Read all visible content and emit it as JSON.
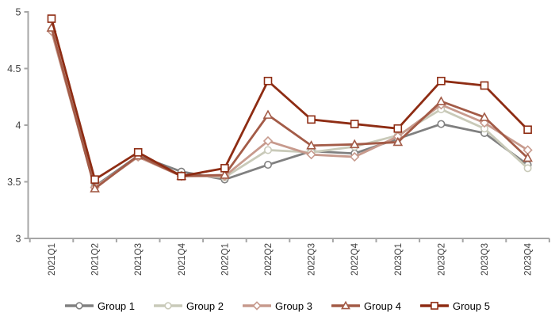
{
  "chart_data": {
    "type": "line",
    "title": "",
    "xlabel": "",
    "ylabel": "",
    "grid": false,
    "legend_position": "bottom",
    "axis_color": "#a6a6a6",
    "tick_label_color": "#404040",
    "marker_fill": "#ffffff",
    "ylim": [
      3,
      5
    ],
    "yticks": [
      {
        "value": 3,
        "label": "3"
      },
      {
        "value": 3.5,
        "label": "3.5"
      },
      {
        "value": 4,
        "label": "4"
      },
      {
        "value": 4.5,
        "label": "4.5"
      },
      {
        "value": 5,
        "label": "5"
      }
    ],
    "categories": [
      "2021Q1",
      "2021Q2",
      "2021Q3",
      "2021Q4",
      "2022Q1",
      "2022Q2",
      "2022Q3",
      "2022Q4",
      "2023Q1",
      "2023Q2",
      "2023Q3",
      "2023Q4"
    ],
    "series": [
      {
        "name": "Group 1",
        "color": "#808080",
        "marker": "circle",
        "values": [
          4.84,
          3.46,
          3.73,
          3.59,
          3.52,
          3.65,
          3.77,
          3.75,
          3.88,
          4.01,
          3.93,
          3.65
        ]
      },
      {
        "name": "Group 2",
        "color": "#c9cab9",
        "marker": "circle",
        "values": [
          4.84,
          3.45,
          3.72,
          3.56,
          3.54,
          3.78,
          3.76,
          3.81,
          3.91,
          4.14,
          3.97,
          3.62
        ]
      },
      {
        "name": "Group 3",
        "color": "#c79a8d",
        "marker": "diamond",
        "values": [
          4.83,
          3.45,
          3.72,
          3.55,
          3.55,
          3.86,
          3.74,
          3.72,
          3.9,
          4.18,
          4.02,
          3.78
        ]
      },
      {
        "name": "Group 4",
        "color": "#a35b47",
        "marker": "triangle",
        "values": [
          4.86,
          3.44,
          3.73,
          3.55,
          3.56,
          4.09,
          3.82,
          3.83,
          3.85,
          4.21,
          4.07,
          3.71
        ]
      },
      {
        "name": "Group 5",
        "color": "#8e2c13",
        "marker": "square",
        "values": [
          4.94,
          3.52,
          3.76,
          3.55,
          3.62,
          4.39,
          4.05,
          4.01,
          3.97,
          4.39,
          4.35,
          3.96
        ]
      }
    ]
  }
}
